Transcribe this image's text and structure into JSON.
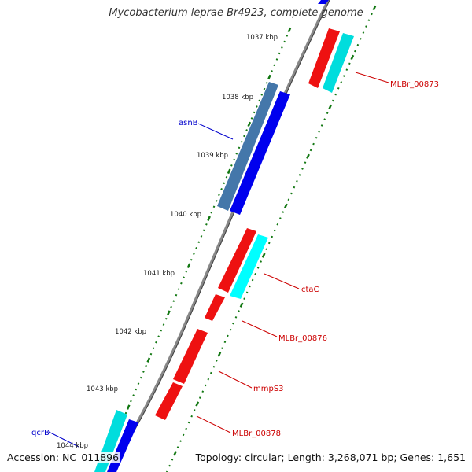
{
  "title": "Mycobacterium leprae Br4923, complete genome",
  "footer": {
    "accession": "Accession: NC_011896",
    "topology": "Topology: circular; Length: 3,268,071 bp; Genes: 1,651"
  },
  "kbp_labels": [
    "1037 kbp",
    "1038 kbp",
    "1039 kbp",
    "1040 kbp",
    "1041 kbp",
    "1042 kbp",
    "1043 kbp",
    "1044 kbp"
  ],
  "gene_labels": [
    {
      "text": "MLBr_00873",
      "color": "#cc0000"
    },
    {
      "text": "asnB",
      "color": "#0000cc"
    },
    {
      "text": "ctaC",
      "color": "#cc0000"
    },
    {
      "text": "MLBr_00876",
      "color": "#cc0000"
    },
    {
      "text": "mmpS3",
      "color": "#cc0000"
    },
    {
      "text": "MLBr_00878",
      "color": "#cc0000"
    },
    {
      "text": "qcrB",
      "color": "#0000cc"
    }
  ],
  "colors": {
    "red_gene": "#ee1111",
    "cyan_gene": "#00dddd",
    "blue_gene": "#0000ee",
    "steel_gene": "#4477aa",
    "tick_green": "#117711",
    "backbone": "#888888"
  }
}
